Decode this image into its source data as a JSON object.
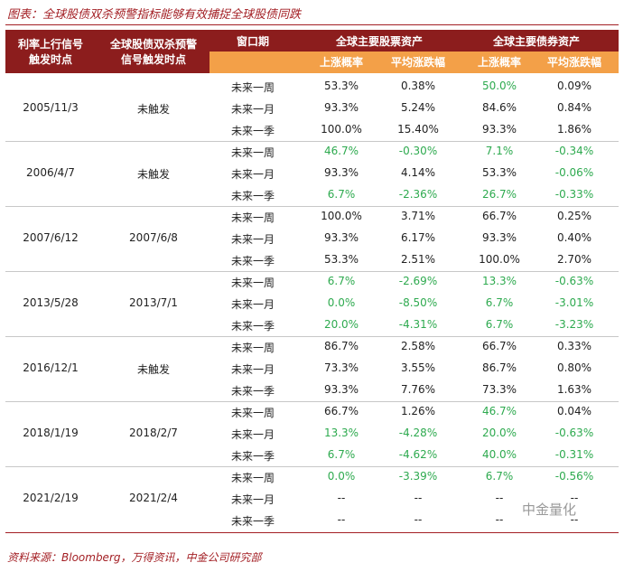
{
  "title": "图表：全球股债双杀预警指标能够有效捕捉全球股债同跌",
  "table": {
    "header": {
      "col1": [
        "利率上行信号",
        "触发时点"
      ],
      "col2": [
        "全球股债双杀预警",
        "信号触发时点"
      ],
      "col3": "窗口期",
      "group1": "全球主要股票资产",
      "group2": "全球主要债券资产",
      "sub": [
        "上涨概率",
        "平均涨跌幅",
        "上涨概率",
        "平均涨跌幅"
      ]
    },
    "highlight_color": "#2eaa4f",
    "groups": [
      {
        "date": "2005/11/3",
        "signal": "未触发",
        "rows": [
          {
            "window": "未来一周",
            "cells": [
              "53.3%",
              "0.38%",
              "50.0%",
              "0.09%"
            ],
            "green": [
              false,
              false,
              true,
              false
            ]
          },
          {
            "window": "未来一月",
            "cells": [
              "93.3%",
              "5.24%",
              "84.6%",
              "0.84%"
            ],
            "green": [
              false,
              false,
              false,
              false
            ]
          },
          {
            "window": "未来一季",
            "cells": [
              "100.0%",
              "15.40%",
              "93.3%",
              "1.86%"
            ],
            "green": [
              false,
              false,
              false,
              false
            ]
          }
        ]
      },
      {
        "date": "2006/4/7",
        "signal": "未触发",
        "rows": [
          {
            "window": "未来一周",
            "cells": [
              "46.7%",
              "-0.30%",
              "7.1%",
              "-0.34%"
            ],
            "green": [
              true,
              true,
              true,
              true
            ]
          },
          {
            "window": "未来一月",
            "cells": [
              "93.3%",
              "4.14%",
              "53.3%",
              "-0.06%"
            ],
            "green": [
              false,
              false,
              false,
              true
            ]
          },
          {
            "window": "未来一季",
            "cells": [
              "6.7%",
              "-2.36%",
              "26.7%",
              "-0.33%"
            ],
            "green": [
              true,
              true,
              true,
              true
            ]
          }
        ]
      },
      {
        "date": "2007/6/12",
        "signal": "2007/6/8",
        "rows": [
          {
            "window": "未来一周",
            "cells": [
              "100.0%",
              "3.71%",
              "66.7%",
              "0.25%"
            ],
            "green": [
              false,
              false,
              false,
              false
            ]
          },
          {
            "window": "未来一月",
            "cells": [
              "93.3%",
              "6.17%",
              "93.3%",
              "0.40%"
            ],
            "green": [
              false,
              false,
              false,
              false
            ]
          },
          {
            "window": "未来一季",
            "cells": [
              "53.3%",
              "2.51%",
              "100.0%",
              "2.70%"
            ],
            "green": [
              false,
              false,
              false,
              false
            ]
          }
        ]
      },
      {
        "date": "2013/5/28",
        "signal": "2013/7/1",
        "rows": [
          {
            "window": "未来一周",
            "cells": [
              "6.7%",
              "-2.69%",
              "13.3%",
              "-0.63%"
            ],
            "green": [
              true,
              true,
              true,
              true
            ]
          },
          {
            "window": "未来一月",
            "cells": [
              "0.0%",
              "-8.50%",
              "6.7%",
              "-3.01%"
            ],
            "green": [
              true,
              true,
              true,
              true
            ]
          },
          {
            "window": "未来一季",
            "cells": [
              "20.0%",
              "-4.31%",
              "6.7%",
              "-3.23%"
            ],
            "green": [
              true,
              true,
              true,
              true
            ]
          }
        ]
      },
      {
        "date": "2016/12/1",
        "signal": "未触发",
        "rows": [
          {
            "window": "未来一周",
            "cells": [
              "86.7%",
              "2.58%",
              "66.7%",
              "0.33%"
            ],
            "green": [
              false,
              false,
              false,
              false
            ]
          },
          {
            "window": "未来一月",
            "cells": [
              "73.3%",
              "3.55%",
              "86.7%",
              "0.80%"
            ],
            "green": [
              false,
              false,
              false,
              false
            ]
          },
          {
            "window": "未来一季",
            "cells": [
              "93.3%",
              "7.76%",
              "73.3%",
              "1.63%"
            ],
            "green": [
              false,
              false,
              false,
              false
            ]
          }
        ]
      },
      {
        "date": "2018/1/19",
        "signal": "2018/2/7",
        "rows": [
          {
            "window": "未来一周",
            "cells": [
              "66.7%",
              "1.26%",
              "46.7%",
              "0.04%"
            ],
            "green": [
              false,
              false,
              true,
              false
            ]
          },
          {
            "window": "未来一月",
            "cells": [
              "13.3%",
              "-4.28%",
              "20.0%",
              "-0.63%"
            ],
            "green": [
              true,
              true,
              true,
              true
            ]
          },
          {
            "window": "未来一季",
            "cells": [
              "6.7%",
              "-4.62%",
              "40.0%",
              "-0.31%"
            ],
            "green": [
              true,
              true,
              true,
              true
            ]
          }
        ]
      },
      {
        "date": "2021/2/19",
        "signal": "2021/2/4",
        "rows": [
          {
            "window": "未来一周",
            "cells": [
              "0.0%",
              "-3.39%",
              "6.7%",
              "-0.56%"
            ],
            "green": [
              true,
              true,
              true,
              true
            ]
          },
          {
            "window": "未来一月",
            "cells": [
              "--",
              "--",
              "--",
              "--"
            ],
            "green": [
              false,
              false,
              false,
              false
            ]
          },
          {
            "window": "未来一季",
            "cells": [
              "--",
              "--",
              "--",
              "--"
            ],
            "green": [
              false,
              false,
              false,
              false
            ]
          }
        ]
      }
    ]
  },
  "watermark": "中金量化",
  "source": "资料来源：Bloomberg，万得资讯，中金公司研究部"
}
